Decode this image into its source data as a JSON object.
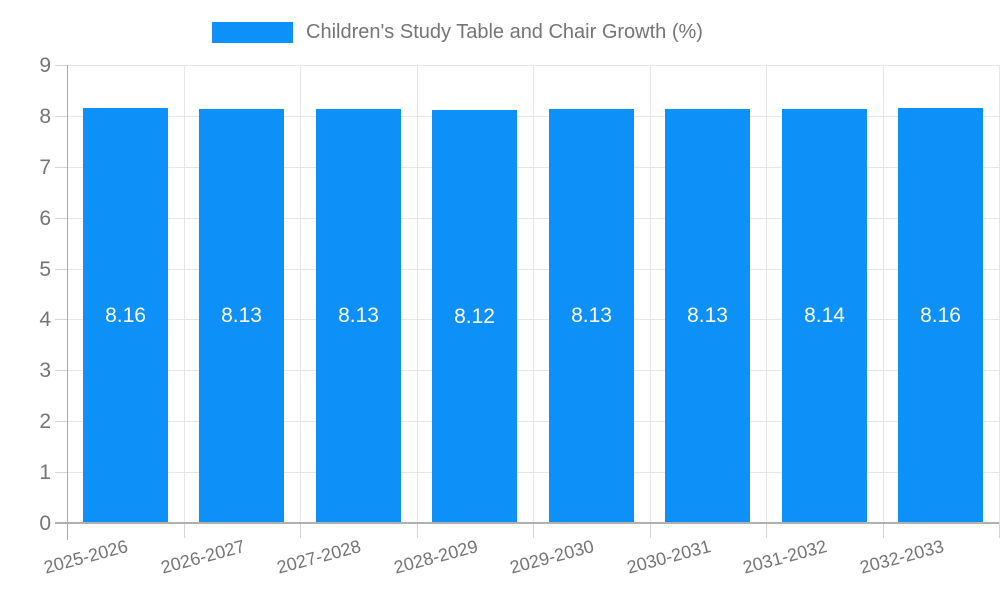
{
  "chart_data": {
    "type": "bar",
    "title": "Children's Study Table and Chair Growth (%)",
    "categories": [
      "2025-2026",
      "2026-2027",
      "2027-2028",
      "2028-2029",
      "2029-2030",
      "2030-2031",
      "2031-2032",
      "2032-2033"
    ],
    "values": [
      8.16,
      8.13,
      8.13,
      8.12,
      8.13,
      8.13,
      8.14,
      8.16
    ],
    "value_labels": [
      "8.16",
      "8.13",
      "8.13",
      "8.12",
      "8.13",
      "8.13",
      "8.14",
      "8.16"
    ],
    "xlabel": "",
    "ylabel": "",
    "ylim": [
      0,
      9
    ],
    "ytick_step": 1,
    "ytick_labels": [
      "0",
      "1",
      "2",
      "3",
      "4",
      "5",
      "6",
      "7",
      "8",
      "9"
    ],
    "grid": true,
    "legend_position": "top",
    "colors": {
      "bar": "#0d90f8",
      "value_label": "#ffffff",
      "axis_text": "#757575",
      "grid": "#e6e6e6",
      "tick": "#d4d4d4",
      "axis_line": "#b0b0b0",
      "background": "#ffffff"
    }
  }
}
